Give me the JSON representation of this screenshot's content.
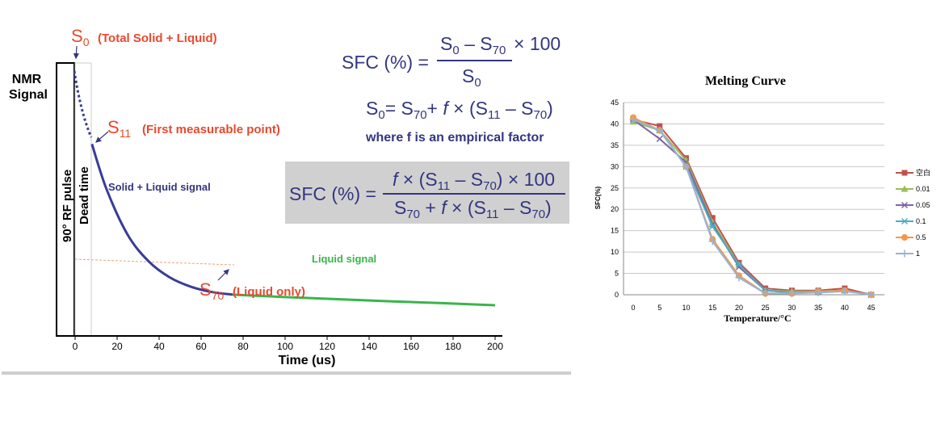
{
  "nmr_figure": {
    "y_label_line1": "NMR",
    "y_label_line2": "Signal",
    "x_label": "Time (us)",
    "pulse_label": "90° RF pulse",
    "dead_time_label": "Dead time",
    "s0_label": "(Total Solid + Liquid)",
    "s11_label": "(First measurable point)",
    "s70_label": "(Liquid only)",
    "solid_liquid_label": "Solid + Liquid signal",
    "liquid_label": "Liquid signal",
    "formula_note": "where f is an empirical factor",
    "colors": {
      "solid_liquid": "#3a3c96",
      "liquid": "#3ab54a",
      "annotation": "#e8492e",
      "formula": "#33367f",
      "box": "#d0d0d0"
    }
  },
  "chart_data": [
    {
      "type": "line",
      "title": "",
      "xlabel": "Time (us)",
      "ylabel": "NMR Signal",
      "x_ticks": [
        0,
        20,
        40,
        60,
        80,
        100,
        120,
        140,
        160,
        180,
        200
      ],
      "xlim": [
        -8,
        203
      ],
      "series": [
        {
          "name": "Solid + Liquid signal",
          "x": [
            0,
            8,
            15,
            25,
            35,
            45,
            55,
            65,
            75
          ],
          "y": [
            100,
            72,
            55,
            38,
            28,
            22,
            18.5,
            16.5,
            15.5
          ]
        },
        {
          "name": "Liquid signal",
          "x": [
            75,
            100,
            125,
            150,
            175,
            200
          ],
          "y": [
            15.5,
            14.6,
            13.8,
            13,
            12.3,
            11.5
          ]
        }
      ]
    },
    {
      "type": "line",
      "title": "Melting Curve",
      "xlabel": "Temperature/°C",
      "ylabel": "SFC(%)",
      "ylim": [
        0,
        45
      ],
      "y_ticks": [
        0,
        5,
        10,
        15,
        20,
        25,
        30,
        35,
        40,
        45
      ],
      "categories": [
        "0",
        "5",
        "10",
        "15",
        "20",
        "25",
        "30",
        "35",
        "40",
        "45"
      ],
      "grid": true,
      "legend_position": "right",
      "series": [
        {
          "name": "空白",
          "color": "#c0504d",
          "marker": "square",
          "values": [
            41,
            39.5,
            32,
            18,
            7.5,
            1.5,
            1,
            1,
            1.5,
            0
          ]
        },
        {
          "name": "0.01",
          "color": "#9bbb59",
          "marker": "triangle",
          "values": [
            40.5,
            38.5,
            31.5,
            17,
            7,
            1,
            0.8,
            0.8,
            1,
            0
          ]
        },
        {
          "name": "0.05",
          "color": "#8064a2",
          "marker": "x",
          "values": [
            41,
            36.5,
            31,
            16.5,
            6.5,
            1,
            0.5,
            0.8,
            1,
            0
          ]
        },
        {
          "name": "0.1",
          "color": "#4bacc6",
          "marker": "star",
          "values": [
            41,
            38.5,
            30,
            16,
            7,
            1,
            0.5,
            0.8,
            1,
            0
          ]
        },
        {
          "name": "0.5",
          "color": "#f79646",
          "marker": "circle",
          "values": [
            41.5,
            38.5,
            30,
            13,
            4.5,
            0.3,
            0.3,
            0.8,
            1,
            0
          ]
        },
        {
          "name": "1",
          "color": "#95b3d7",
          "marker": "plus",
          "values": [
            41,
            38.5,
            30,
            12.5,
            4,
            0.3,
            0.3,
            0.5,
            0.8,
            0
          ]
        }
      ]
    }
  ]
}
